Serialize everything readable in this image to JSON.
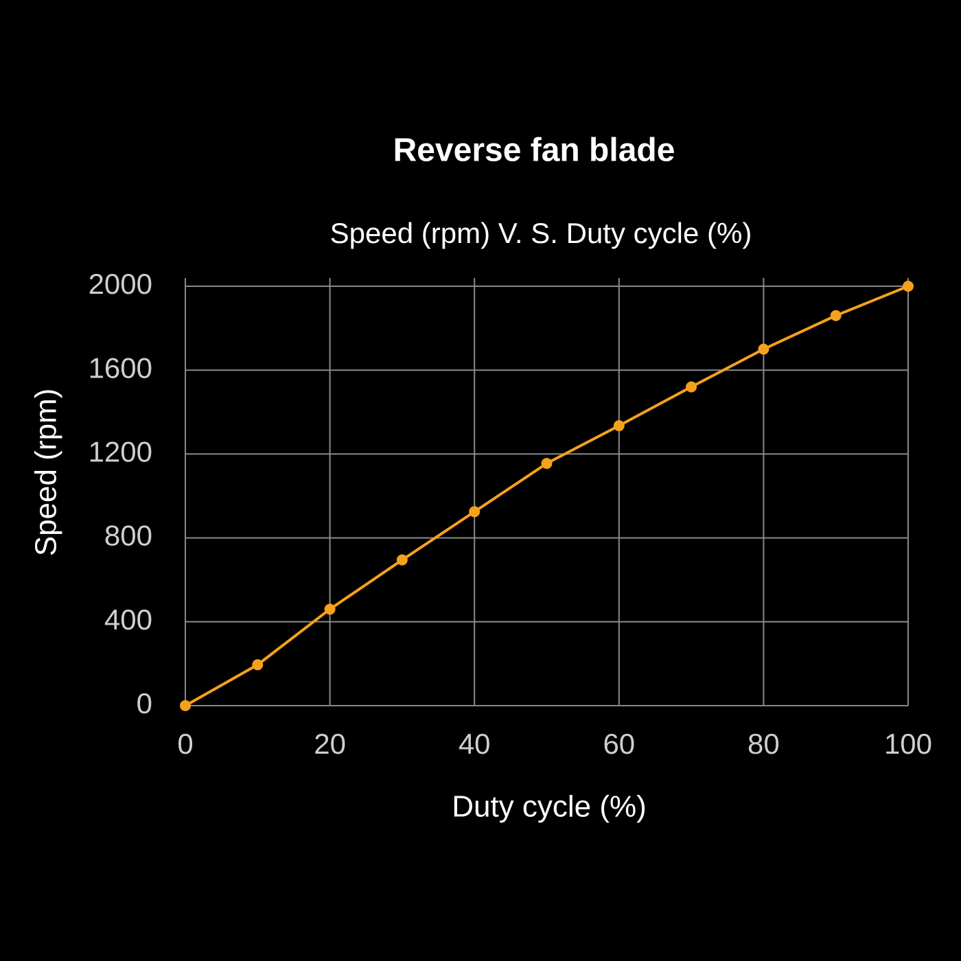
{
  "chart_data": {
    "type": "line",
    "title": "Reverse fan blade",
    "subtitle": "Speed (rpm) V. S. Duty cycle (%)",
    "x_label": "Duty cycle (%)",
    "y_label": "Speed (rpm)",
    "x": [
      0,
      10,
      20,
      30,
      40,
      50,
      60,
      70,
      80,
      90,
      100
    ],
    "values": [
      0,
      195,
      460,
      695,
      925,
      1155,
      1335,
      1520,
      1700,
      1860,
      2000
    ],
    "color": "#f5a11c",
    "xlim": [
      0,
      100
    ],
    "xticks": [
      0,
      20,
      40,
      60,
      80,
      100
    ],
    "ylim": [
      0,
      2000
    ],
    "yticks": [
      0,
      400,
      800,
      1200,
      1600,
      2000
    ],
    "grid": true
  }
}
